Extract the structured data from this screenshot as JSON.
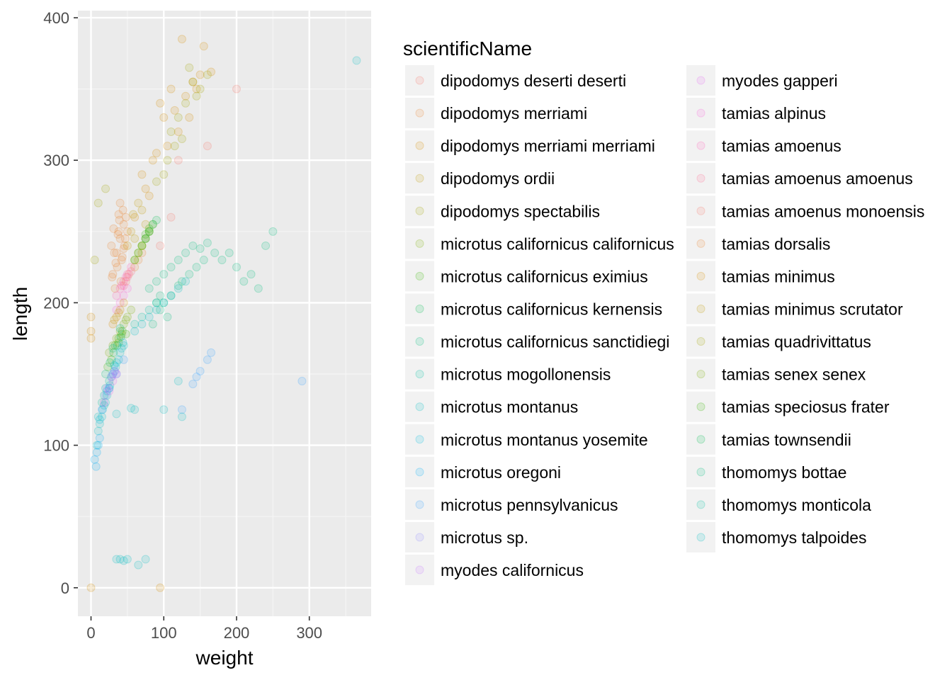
{
  "chart_data": {
    "type": "scatter",
    "xlabel": "weight",
    "ylabel": "length",
    "xlim": [
      -18,
      385
    ],
    "ylim": [
      -20,
      405
    ],
    "x_ticks": [
      0,
      100,
      200,
      300
    ],
    "y_ticks": [
      0,
      100,
      200,
      300,
      400
    ],
    "grid": true,
    "point_alpha": 0.15,
    "legend_title": "scientificName",
    "legend_position": "right",
    "series": [
      {
        "name": "dipodomys deserti deserti",
        "color": "#F8766D",
        "points": [
          [
            120,
            300
          ],
          [
            200,
            350
          ],
          [
            110,
            260
          ],
          [
            95,
            240
          ],
          [
            160,
            310
          ]
        ]
      },
      {
        "name": "dipodomys merriami",
        "color": "#EA8331",
        "points": [
          [
            35,
            235
          ],
          [
            40,
            245
          ],
          [
            30,
            220
          ],
          [
            45,
            255
          ],
          [
            38,
            250
          ],
          [
            42,
            230
          ],
          [
            33,
            210
          ],
          [
            48,
            260
          ],
          [
            28,
            240
          ],
          [
            44,
            265
          ],
          [
            36,
            225
          ],
          [
            50,
            250
          ],
          [
            40,
            270
          ],
          [
            32,
            235
          ],
          [
            46,
            240
          ],
          [
            39,
            258
          ],
          [
            41,
            215
          ],
          [
            37,
            248
          ],
          [
            43,
            232
          ],
          [
            34,
            228
          ],
          [
            47,
            245
          ],
          [
            31,
            252
          ],
          [
            45,
            238
          ],
          [
            38,
            262
          ],
          [
            29,
            218
          ]
        ]
      },
      {
        "name": "dipodomys merriami merriami",
        "color": "#D89000",
        "points": [
          [
            60,
            260
          ],
          [
            75,
            280
          ],
          [
            85,
            300
          ],
          [
            100,
            330
          ],
          [
            95,
            340
          ],
          [
            110,
            350
          ],
          [
            120,
            320
          ],
          [
            130,
            345
          ],
          [
            140,
            355
          ],
          [
            150,
            360
          ],
          [
            125,
            385
          ],
          [
            155,
            380
          ],
          [
            165,
            362
          ],
          [
            105,
            310
          ],
          [
            115,
            335
          ],
          [
            70,
            290
          ],
          [
            80,
            275
          ],
          [
            90,
            305
          ],
          [
            135,
            330
          ],
          [
            145,
            350
          ]
        ]
      },
      {
        "name": "dipodomys ordii",
        "color": "#C09B00",
        "points": [
          [
            55,
            250
          ],
          [
            65,
            270
          ],
          [
            70,
            265
          ],
          [
            60,
            245
          ],
          [
            75,
            255
          ],
          [
            50,
            240
          ],
          [
            58,
            262
          ]
        ]
      },
      {
        "name": "dipodomys spectabilis",
        "color": "#A3A500",
        "points": [
          [
            100,
            290
          ],
          [
            110,
            320
          ],
          [
            120,
            330
          ],
          [
            130,
            340
          ],
          [
            140,
            355
          ],
          [
            150,
            350
          ],
          [
            160,
            360
          ],
          [
            105,
            300
          ],
          [
            115,
            310
          ],
          [
            135,
            365
          ],
          [
            145,
            345
          ],
          [
            125,
            315
          ],
          [
            10,
            270
          ],
          [
            5,
            230
          ],
          [
            20,
            280
          ],
          [
            90,
            285
          ]
        ]
      },
      {
        "name": "microtus californicus californicus",
        "color": "#7CAE00",
        "points": [
          [
            30,
            170
          ],
          [
            35,
            175
          ],
          [
            40,
            180
          ],
          [
            45,
            185
          ],
          [
            50,
            190
          ],
          [
            25,
            165
          ],
          [
            55,
            195
          ],
          [
            38,
            172
          ],
          [
            42,
            178
          ],
          [
            48,
            188
          ]
        ]
      },
      {
        "name": "microtus californicus eximius",
        "color": "#39B600",
        "points": [
          [
            28,
            160
          ],
          [
            33,
            170
          ],
          [
            38,
            175
          ],
          [
            43,
            180
          ],
          [
            48,
            178
          ],
          [
            23,
            155
          ]
        ]
      },
      {
        "name": "microtus californicus kernensis",
        "color": "#00BB4E",
        "points": [
          [
            26,
            158
          ],
          [
            31,
            165
          ],
          [
            36,
            170
          ],
          [
            41,
            176
          ]
        ]
      },
      {
        "name": "microtus californicus sanctidiegi",
        "color": "#00BF7D",
        "points": [
          [
            20,
            150
          ],
          [
            30,
            168
          ],
          [
            40,
            182
          ]
        ]
      },
      {
        "name": "microtus mogollonensis",
        "color": "#00C1A3",
        "points": [
          [
            15,
            130
          ],
          [
            20,
            140
          ],
          [
            25,
            145
          ],
          [
            18,
            135
          ]
        ]
      },
      {
        "name": "microtus montanus",
        "color": "#00BFC4",
        "points": [
          [
            15,
            120
          ],
          [
            20,
            130
          ],
          [
            25,
            140
          ],
          [
            30,
            150
          ],
          [
            35,
            158
          ],
          [
            40,
            165
          ],
          [
            45,
            170
          ],
          [
            10,
            110
          ],
          [
            12,
            115
          ],
          [
            18,
            128
          ],
          [
            22,
            135
          ],
          [
            28,
            148
          ],
          [
            32,
            152
          ],
          [
            38,
            160
          ],
          [
            42,
            168
          ],
          [
            8,
            100
          ],
          [
            16,
            125
          ],
          [
            26,
            142
          ],
          [
            34,
            155
          ],
          [
            44,
            172
          ]
        ]
      },
      {
        "name": "microtus montanus yosemite",
        "color": "#00BAE0",
        "points": [
          [
            12,
            118
          ],
          [
            22,
            138
          ],
          [
            32,
            156
          ]
        ]
      },
      {
        "name": "microtus oregoni",
        "color": "#00B0F6",
        "points": [
          [
            8,
            95
          ],
          [
            10,
            100
          ],
          [
            12,
            105
          ],
          [
            5,
            90
          ],
          [
            7,
            85
          ]
        ]
      },
      {
        "name": "microtus pennsylvanicus",
        "color": "#35A2FF",
        "points": [
          [
            15,
            125
          ],
          [
            25,
            140
          ],
          [
            35,
            150
          ],
          [
            45,
            160
          ],
          [
            290,
            145
          ],
          [
            165,
            165
          ],
          [
            150,
            152
          ],
          [
            145,
            148
          ],
          [
            140,
            143
          ],
          [
            125,
            125
          ],
          [
            160,
            160
          ]
        ]
      },
      {
        "name": "microtus sp.",
        "color": "#9590FF",
        "points": [
          [
            20,
            135
          ],
          [
            30,
            150
          ]
        ]
      },
      {
        "name": "myodes californicus",
        "color": "#C77CFF",
        "points": [
          [
            22,
            140
          ],
          [
            28,
            148
          ],
          [
            33,
            152
          ]
        ]
      },
      {
        "name": "myodes gapperi",
        "color": "#E76BF3",
        "points": [
          [
            18,
            130
          ],
          [
            25,
            138
          ],
          [
            30,
            145
          ],
          [
            35,
            150
          ]
        ]
      },
      {
        "name": "tamias alpinus",
        "color": "#FA62DB",
        "points": [
          [
            40,
            200
          ],
          [
            45,
            205
          ],
          [
            35,
            195
          ],
          [
            50,
            210
          ]
        ]
      },
      {
        "name": "tamias amoenus",
        "color": "#FF62BC",
        "points": [
          [
            40,
            210
          ],
          [
            45,
            215
          ],
          [
            50,
            220
          ],
          [
            35,
            205
          ],
          [
            55,
            225
          ],
          [
            42,
            212
          ],
          [
            48,
            218
          ]
        ]
      },
      {
        "name": "tamias amoenus amoenus",
        "color": "#FF6C91",
        "points": [
          [
            45,
            212
          ],
          [
            50,
            218
          ],
          [
            55,
            222
          ]
        ]
      },
      {
        "name": "tamias amoenus monoensis",
        "color": "#F8766D",
        "points": [
          [
            48,
            215
          ],
          [
            52,
            220
          ]
        ]
      },
      {
        "name": "tamias dorsalis",
        "color": "#EA8331",
        "points": [
          [
            60,
            225
          ],
          [
            65,
            230
          ],
          [
            70,
            235
          ]
        ]
      },
      {
        "name": "tamias minimus",
        "color": "#D89000",
        "points": [
          [
            35,
            190
          ],
          [
            40,
            195
          ],
          [
            30,
            185
          ],
          [
            45,
            200
          ],
          [
            0,
            180
          ],
          [
            0,
            175
          ],
          [
            0,
            190
          ],
          [
            0,
            0
          ],
          [
            95,
            0
          ]
        ]
      },
      {
        "name": "tamias minimus scrutator",
        "color": "#C09B00",
        "points": [
          [
            32,
            188
          ],
          [
            38,
            193
          ]
        ]
      },
      {
        "name": "tamias quadrivittatus",
        "color": "#A3A500",
        "points": [
          [
            60,
            230
          ],
          [
            65,
            235
          ],
          [
            70,
            240
          ],
          [
            75,
            245
          ],
          [
            80,
            250
          ]
        ]
      },
      {
        "name": "tamias senex senex",
        "color": "#7CAE00",
        "points": [
          [
            70,
            240
          ],
          [
            75,
            245
          ],
          [
            80,
            250
          ],
          [
            85,
            255
          ]
        ]
      },
      {
        "name": "tamias speciosus frater",
        "color": "#39B600",
        "points": [
          [
            65,
            235
          ],
          [
            70,
            240
          ],
          [
            75,
            248
          ],
          [
            60,
            230
          ],
          [
            80,
            252
          ]
        ]
      },
      {
        "name": "tamias townsendii",
        "color": "#00BB4E",
        "points": [
          [
            75,
            245
          ],
          [
            80,
            250
          ],
          [
            85,
            255
          ],
          [
            90,
            258
          ]
        ]
      },
      {
        "name": "thomomys bottae",
        "color": "#00BF7D",
        "points": [
          [
            80,
            210
          ],
          [
            90,
            215
          ],
          [
            100,
            220
          ],
          [
            110,
            225
          ],
          [
            120,
            230
          ],
          [
            130,
            235
          ],
          [
            140,
            240
          ],
          [
            150,
            238
          ],
          [
            160,
            242
          ],
          [
            170,
            235
          ],
          [
            180,
            230
          ],
          [
            190,
            235
          ],
          [
            200,
            225
          ],
          [
            210,
            215
          ],
          [
            220,
            220
          ],
          [
            230,
            210
          ],
          [
            240,
            240
          ],
          [
            250,
            250
          ],
          [
            100,
            200
          ],
          [
            110,
            205
          ],
          [
            120,
            212
          ],
          [
            90,
            200
          ],
          [
            95,
            195
          ],
          [
            105,
            190
          ],
          [
            85,
            185
          ],
          [
            95,
            205
          ],
          [
            125,
            215
          ],
          [
            135,
            220
          ],
          [
            145,
            225
          ],
          [
            155,
            230
          ]
        ]
      },
      {
        "name": "thomomys monticola",
        "color": "#00C1A3",
        "points": [
          [
            70,
            190
          ],
          [
            80,
            195
          ],
          [
            90,
            200
          ],
          [
            60,
            185
          ]
        ]
      },
      {
        "name": "thomomys talpoides",
        "color": "#00BFC4",
        "points": [
          [
            60,
            180
          ],
          [
            70,
            185
          ],
          [
            80,
            190
          ],
          [
            90,
            195
          ],
          [
            100,
            200
          ],
          [
            110,
            205
          ],
          [
            120,
            210
          ],
          [
            130,
            215
          ],
          [
            40,
            20
          ],
          [
            35,
            20
          ],
          [
            45,
            19
          ],
          [
            50,
            20
          ],
          [
            65,
            16
          ],
          [
            75,
            20
          ],
          [
            100,
            125
          ],
          [
            125,
            120
          ],
          [
            60,
            125
          ],
          [
            55,
            126
          ],
          [
            35,
            122
          ],
          [
            10,
            120
          ],
          [
            120,
            145
          ],
          [
            365,
            370
          ]
        ]
      }
    ]
  }
}
